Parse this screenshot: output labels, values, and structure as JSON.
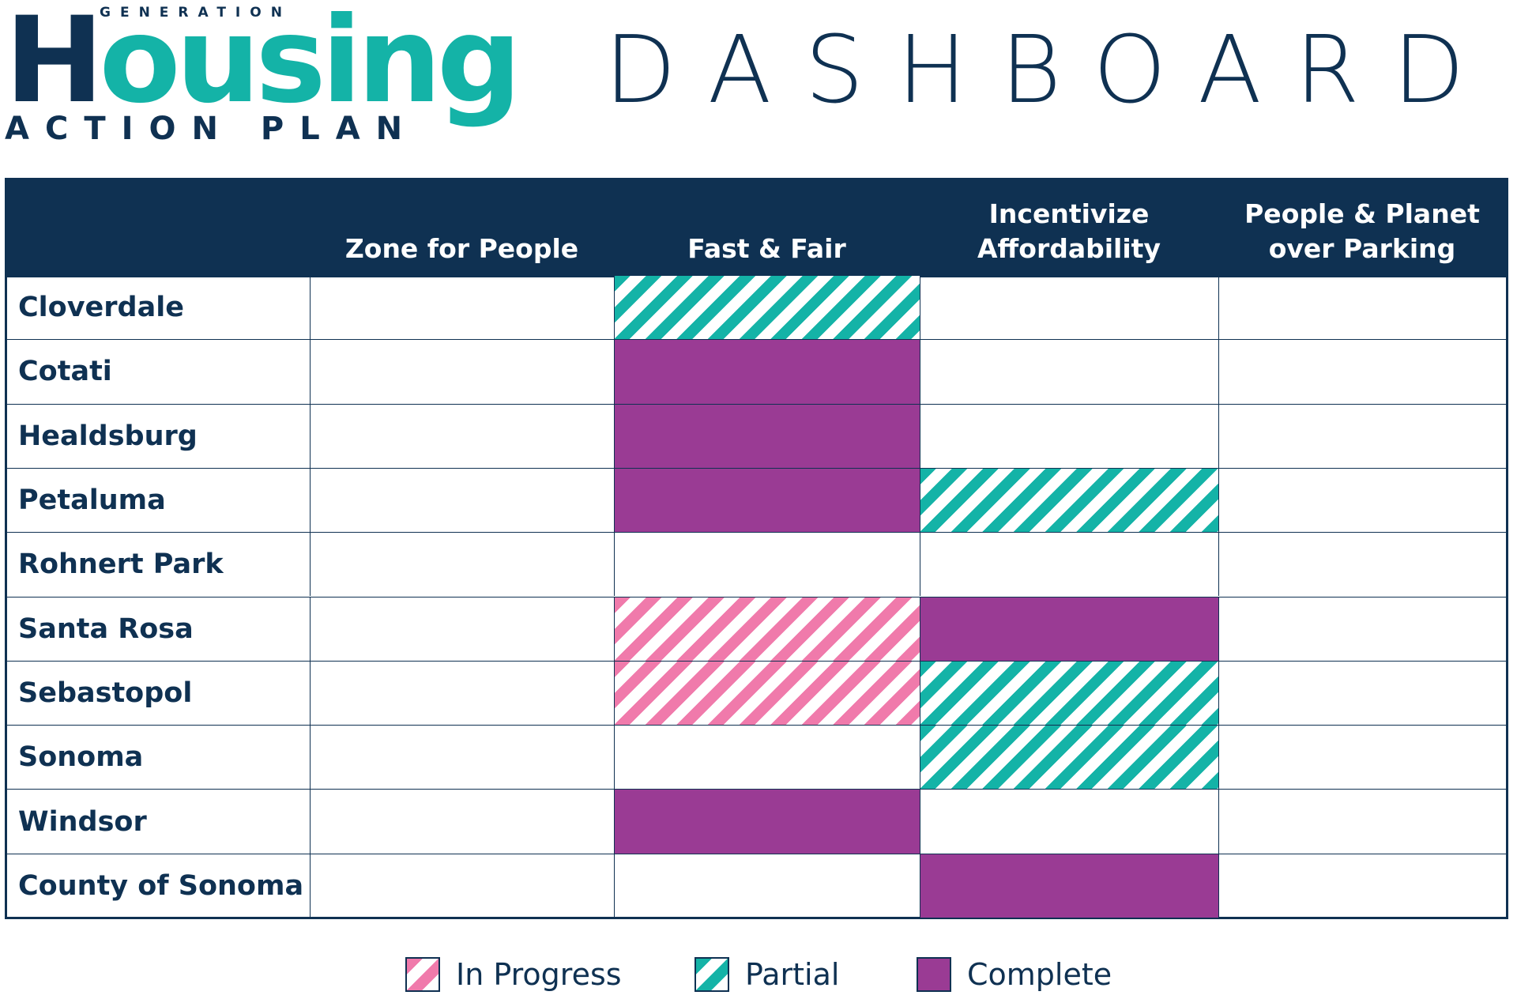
{
  "header": {
    "logo": {
      "top": "GENERATION",
      "main": "Housing",
      "bottom": "ACTION PLAN"
    },
    "title": "DASHBOARD"
  },
  "table": {
    "columns": [
      "Zone for People",
      "Fast & Fair",
      "Incentivize Affordability",
      "People & Planet over Parking"
    ],
    "rows": [
      {
        "name": "Cloverdale",
        "status": [
          null,
          "Partial",
          null,
          null
        ]
      },
      {
        "name": "Cotati",
        "status": [
          null,
          "Complete",
          null,
          null
        ]
      },
      {
        "name": "Healdsburg",
        "status": [
          null,
          "Complete",
          null,
          null
        ]
      },
      {
        "name": "Petaluma",
        "status": [
          null,
          "Complete",
          "Partial",
          null
        ]
      },
      {
        "name": "Rohnert Park",
        "status": [
          null,
          null,
          null,
          null
        ]
      },
      {
        "name": "Santa Rosa",
        "status": [
          null,
          "In Progress",
          "Complete",
          null
        ]
      },
      {
        "name": "Sebastopol",
        "status": [
          null,
          "In Progress",
          "Partial",
          null
        ]
      },
      {
        "name": "Sonoma",
        "status": [
          null,
          null,
          "Partial",
          null
        ]
      },
      {
        "name": "Windsor",
        "status": [
          null,
          "Complete",
          null,
          null
        ]
      },
      {
        "name": "County of Sonoma",
        "status": [
          null,
          null,
          "Complete",
          null
        ]
      }
    ]
  },
  "legend": [
    "In Progress",
    "Partial",
    "Complete"
  ]
}
